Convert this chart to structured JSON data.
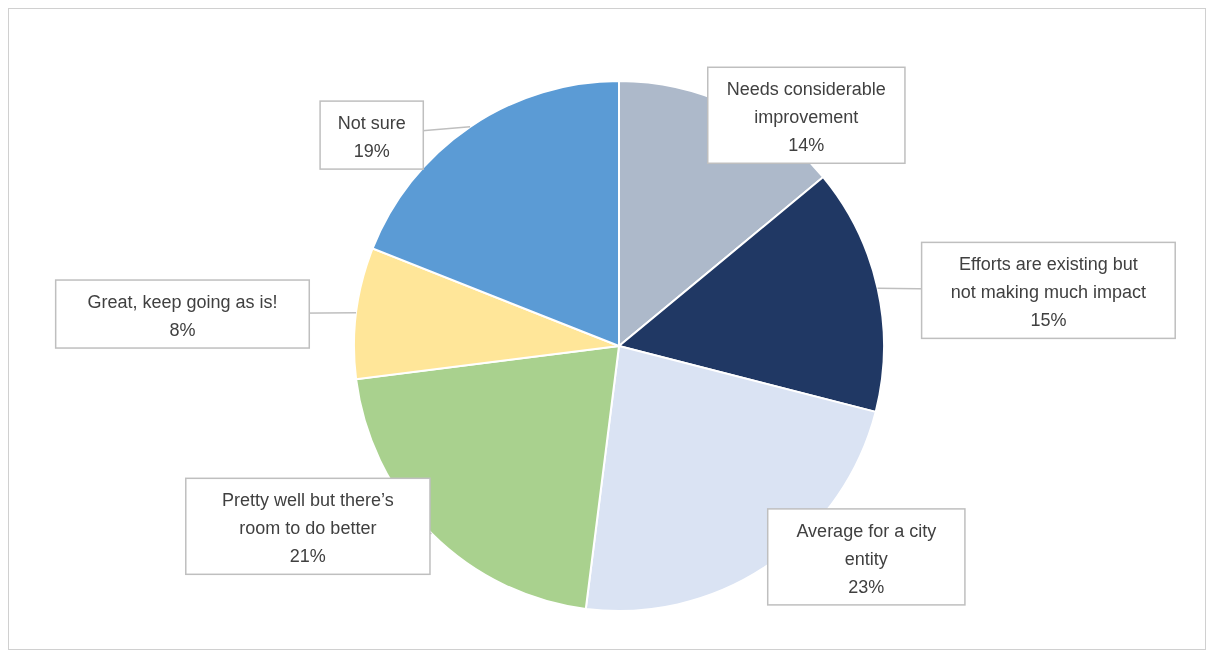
{
  "chart_data": {
    "type": "pie",
    "categories": [
      "Needs considerable improvement",
      "Efforts are existing but not making much impact",
      "Average for a city entity",
      "Pretty well but there’s room to do better",
      "Great, keep going as is!",
      "Not sure"
    ],
    "values": [
      14,
      15,
      23,
      21,
      8,
      19
    ],
    "colors": [
      "#adb9ca",
      "#203864",
      "#dae3f3",
      "#a9d18e",
      "#ffe699",
      "#5b9bd5"
    ],
    "value_labels": [
      "14%",
      "15%",
      "23%",
      "21%",
      "8%",
      "19%"
    ],
    "legend": false
  }
}
